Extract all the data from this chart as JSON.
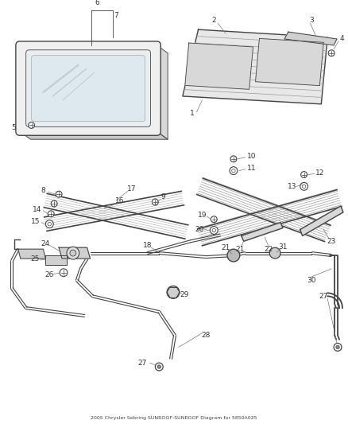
{
  "title": "2005 Chrysler Sebring SUNROOF-SUNROOF Diagram for 5850A025",
  "bg_color": "#ffffff",
  "lc": "#444444",
  "label_fs": 6.5
}
